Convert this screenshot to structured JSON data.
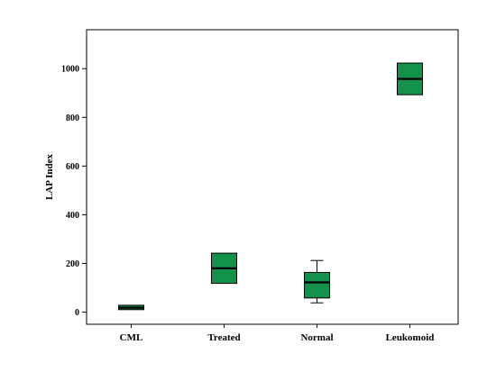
{
  "chart_data": {
    "type": "boxplot",
    "title": "",
    "xlabel": "",
    "ylabel": "LAP Index",
    "ylim": [
      -50,
      1160
    ],
    "yticks": [
      0,
      200,
      400,
      600,
      800,
      1000
    ],
    "grid": false,
    "legend": "none",
    "box_color": "#12914a",
    "categories": [
      "CML",
      "Treated",
      "Normal",
      "Leukomoid"
    ],
    "boxes": [
      {
        "category": "CML",
        "whisker_low": 10,
        "q1": 10,
        "median": 18,
        "q3": 28,
        "whisker_high": 28
      },
      {
        "category": "Treated",
        "whisker_low": 118,
        "q1": 118,
        "median": 180,
        "q3": 242,
        "whisker_high": 242
      },
      {
        "category": "Normal",
        "whisker_low": 38,
        "q1": 58,
        "median": 122,
        "q3": 163,
        "whisker_high": 212
      },
      {
        "category": "Leukomoid",
        "whisker_low": 893,
        "q1": 893,
        "median": 958,
        "q3": 1023,
        "whisker_high": 1023
      }
    ]
  }
}
